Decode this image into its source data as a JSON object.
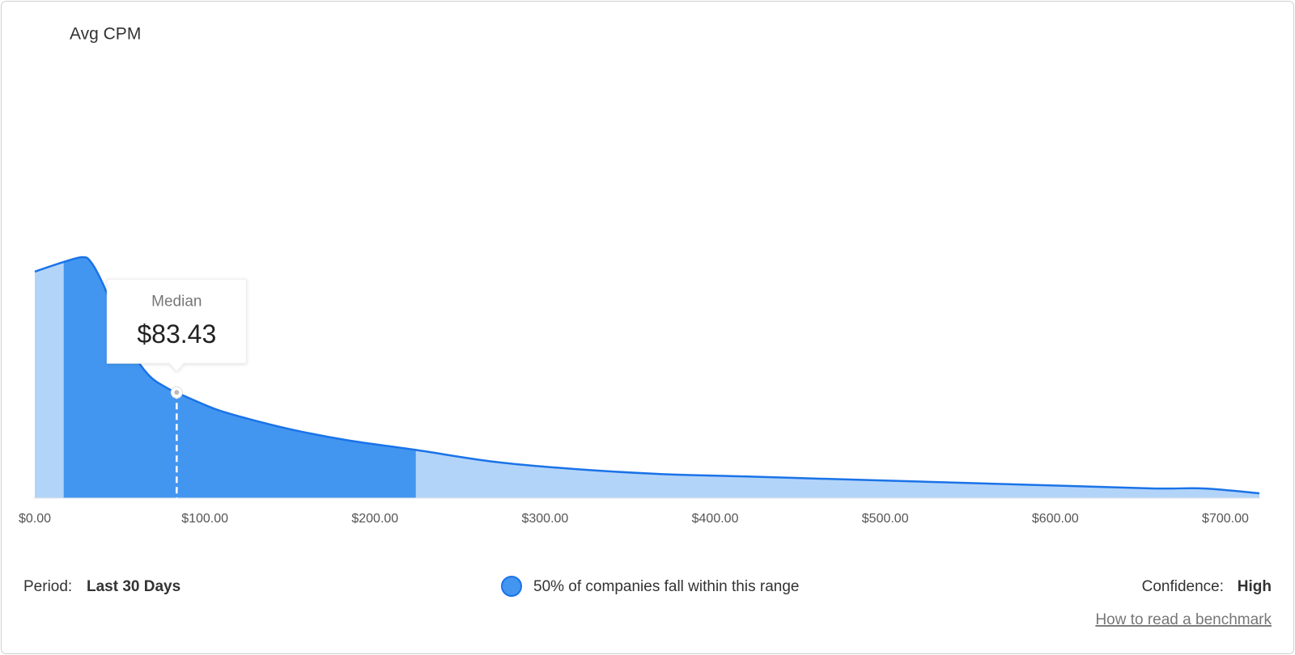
{
  "header": {
    "title": "Avg CPM"
  },
  "chart_data": {
    "type": "area",
    "x": [
      0,
      17,
      28,
      33,
      40,
      48,
      57,
      67,
      77,
      86,
      106,
      125,
      154,
      184,
      224,
      271,
      319,
      368,
      417,
      465,
      514,
      562,
      611,
      659,
      688,
      720
    ],
    "values": [
      94,
      98,
      100,
      98,
      89,
      75,
      61,
      51,
      46,
      43,
      37,
      33,
      28,
      24,
      20,
      15,
      12,
      10,
      9,
      8,
      7,
      6,
      5,
      4,
      4,
      2
    ],
    "color": "#b3d4f9",
    "line_color": "#1a73e8",
    "range_color": "#4296f0",
    "range": [
      17,
      224
    ],
    "range_label": "50% of companies fall within this range",
    "median": {
      "label": "Median",
      "value": 83.43,
      "value_label": "$83.43"
    },
    "xlim": [
      0,
      720
    ],
    "ylim": [
      0,
      100
    ],
    "xticks": [
      {
        "value": 0,
        "label": "$0.00"
      },
      {
        "value": 100,
        "label": "$100.00"
      },
      {
        "value": 200,
        "label": "$200.00"
      },
      {
        "value": 300,
        "label": "$300.00"
      },
      {
        "value": 400,
        "label": "$400.00"
      },
      {
        "value": 500,
        "label": "$500.00"
      },
      {
        "value": 600,
        "label": "$600.00"
      },
      {
        "value": 700,
        "label": "$700.00"
      }
    ]
  },
  "footer": {
    "period_label": "Period:",
    "period": "Last 30 Days",
    "confidence_label": "Confidence:",
    "confidence": "High",
    "link": "How to read a benchmark"
  }
}
